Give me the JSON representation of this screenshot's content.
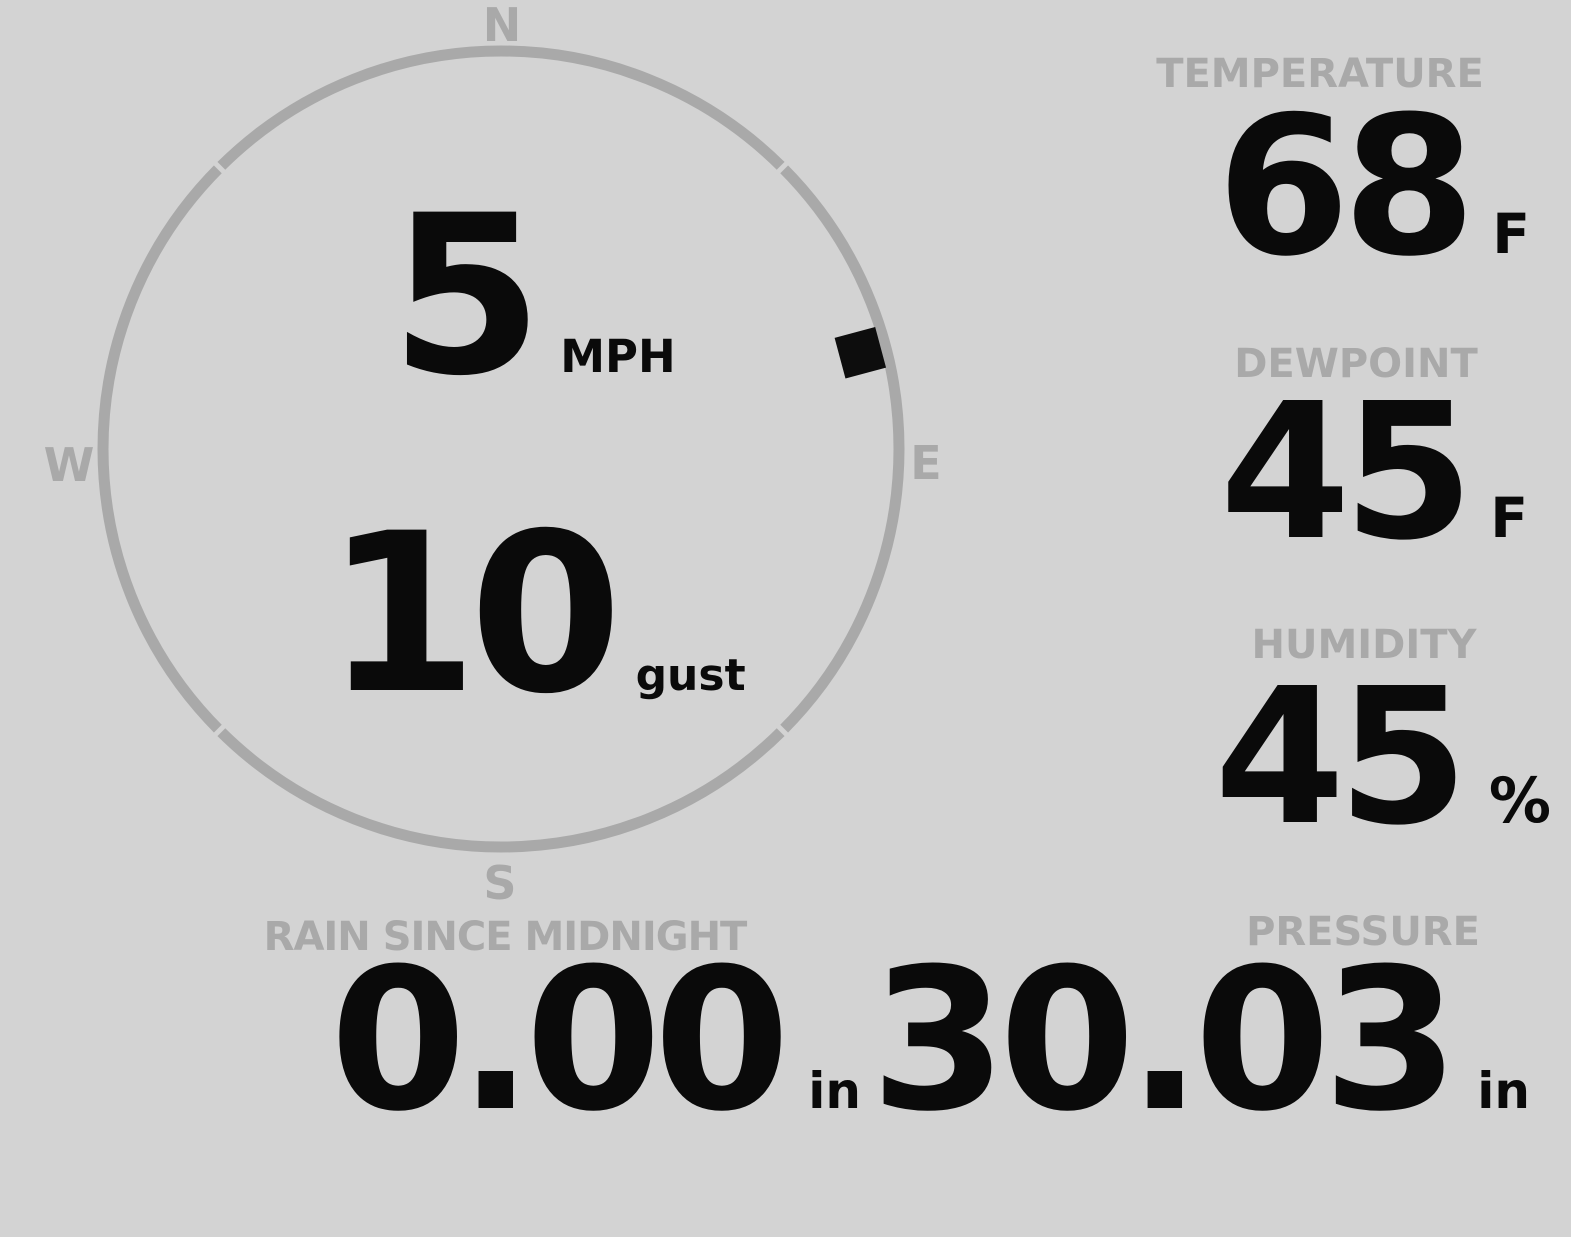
{
  "colors": {
    "background": "#d3d3d3",
    "muted": "#a9a9a9",
    "value": "#0a0a0a",
    "marker": "#0d0d0d"
  },
  "wind": {
    "speed": "5",
    "speed_unit": "MPH",
    "gust": "10",
    "gust_unit": "gust",
    "direction_degrees": 75,
    "cardinals": {
      "north": "N",
      "east": "E",
      "south": "S",
      "west": "W"
    }
  },
  "metrics": {
    "temperature": {
      "label": "TEMPERATURE",
      "value": "68",
      "unit": "F"
    },
    "dewpoint": {
      "label": "DEWPOINT",
      "value": "45",
      "unit": "F"
    },
    "humidity": {
      "label": "HUMIDITY",
      "value": "45",
      "unit": "%"
    },
    "rain": {
      "label": "RAIN SINCE MIDNIGHT",
      "value": "0.00",
      "unit": "in"
    },
    "pressure": {
      "label": "PRESSURE",
      "value": "30.03",
      "unit": "in"
    }
  }
}
